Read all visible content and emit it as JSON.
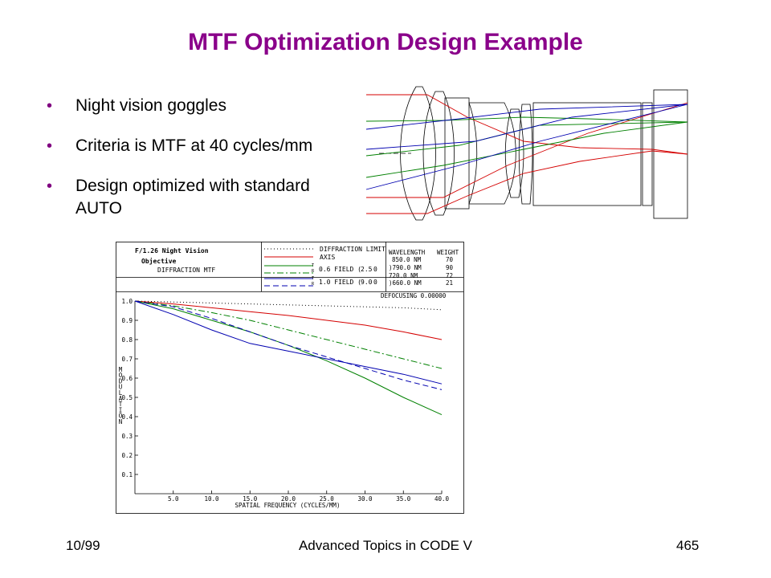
{
  "slide": {
    "title": "MTF Optimization Design Example",
    "bullets": [
      "Night vision goggles",
      "Criteria is MTF at 40 cycles/mm",
      "Design optimized with standard AUTO"
    ],
    "footer": {
      "left": "10/99",
      "center": "Advanced Topics in CODE V",
      "right": "465"
    }
  },
  "colors": {
    "title": "#8a008a",
    "bullet": "#800080",
    "red": "#d40000",
    "green": "#008000",
    "blue": "#0000b0"
  },
  "plot_header": {
    "title_line1": "F/1.26 Night Vision",
    "title_line2": "Objective",
    "title_line3": "DIFFRACTION MTF",
    "legend_diffraction": "DIFFRACTION LIMIT",
    "legend_axis": "AXIS",
    "legend_field1": "0.6 FIELD (",
    "legend_field1_val": "2.5",
    "legend_field1_unit": "0",
    "legend_field2": "1.0 FIELD (",
    "legend_field2_val": "9.0",
    "legend_field2_unit": "0",
    "sym_t": "T",
    "sym_r": "R",
    "wavelength_header": "WAVELENGTH",
    "weight_header": "WEIGHT",
    "wavelengths": [
      {
        "w": "850.0 NM",
        "wt": "70"
      },
      {
        "w": ")790.0 NM",
        "wt": "90"
      },
      {
        "w": " 720.0 NM",
        "wt": "72"
      },
      {
        "w": ")660.0 NM",
        "wt": "21"
      }
    ],
    "defocusing": "DEFOCUSING 0.00000"
  },
  "chart_data": {
    "type": "line",
    "xlabel": "SPATIAL FREQUENCY (CYCLES/MM)",
    "ylabel": "MODULATION",
    "xlim": [
      0,
      40
    ],
    "ylim": [
      0,
      1.0
    ],
    "x_ticks": [
      "5.0",
      "10.0",
      "15.0",
      "20.0",
      "25.0",
      "30.0",
      "35.0",
      "40.0"
    ],
    "y_ticks": [
      "0.1",
      "0.2",
      "0.3",
      "0.4",
      "0.5",
      "0.6",
      "0.7",
      "0.8",
      "0.9",
      "1.0"
    ],
    "x": [
      0,
      5,
      10,
      15,
      20,
      25,
      30,
      35,
      40
    ],
    "series": [
      {
        "key": "diffraction",
        "color": "#000000",
        "dash": "1,3",
        "values": [
          1.0,
          0.995,
          0.99,
          0.985,
          0.98,
          0.975,
          0.97,
          0.965,
          0.955
        ]
      },
      {
        "key": "axis",
        "color": "#d40000",
        "dash": "",
        "values": [
          1.0,
          0.985,
          0.965,
          0.945,
          0.925,
          0.9,
          0.875,
          0.84,
          0.8
        ]
      },
      {
        "key": "f06_t",
        "color": "#008000",
        "dash": "",
        "values": [
          1.0,
          0.96,
          0.9,
          0.84,
          0.77,
          0.69,
          0.6,
          0.5,
          0.41
        ]
      },
      {
        "key": "f06_r",
        "color": "#008000",
        "dash": "8,3,2,3",
        "values": [
          1.0,
          0.975,
          0.94,
          0.9,
          0.85,
          0.8,
          0.75,
          0.7,
          0.65
        ]
      },
      {
        "key": "f10_t",
        "color": "#0000b0",
        "dash": "",
        "values": [
          1.0,
          0.93,
          0.85,
          0.78,
          0.74,
          0.7,
          0.66,
          0.62,
          0.57
        ]
      },
      {
        "key": "f10_r",
        "color": "#0000b0",
        "dash": "7,4",
        "values": [
          1.0,
          0.97,
          0.91,
          0.84,
          0.77,
          0.71,
          0.65,
          0.59,
          0.54
        ]
      }
    ]
  }
}
